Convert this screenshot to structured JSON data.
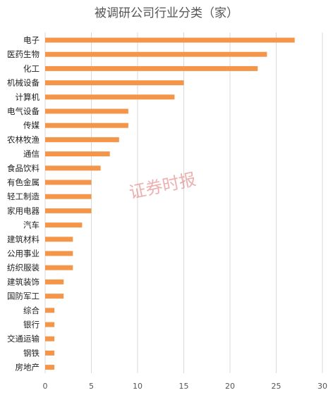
{
  "chart_data": {
    "type": "bar",
    "orientation": "horizontal",
    "title": "被调研公司行业分类（家）",
    "categories": [
      "电子",
      "医药生物",
      "化工",
      "机械设备",
      "计算机",
      "电气设备",
      "传媒",
      "农林牧渔",
      "通信",
      "食品饮料",
      "有色金属",
      "轻工制造",
      "家用电器",
      "汽车",
      "建筑材料",
      "公用事业",
      "纺织服装",
      "建筑装饰",
      "国防军工",
      "综合",
      "银行",
      "交通运输",
      "钢铁",
      "房地产"
    ],
    "values": [
      27,
      24,
      23,
      15,
      14,
      9,
      9,
      8,
      7,
      6,
      5,
      5,
      5,
      4,
      3,
      3,
      3,
      2,
      2,
      1,
      1,
      1,
      1,
      1
    ],
    "xlim": [
      0,
      30
    ],
    "xticks": [
      0,
      5,
      10,
      15,
      20,
      25,
      30
    ],
    "grid": true,
    "bar_color": "#F4964A",
    "xlabel": "",
    "ylabel": ""
  },
  "watermark": "证券时报"
}
